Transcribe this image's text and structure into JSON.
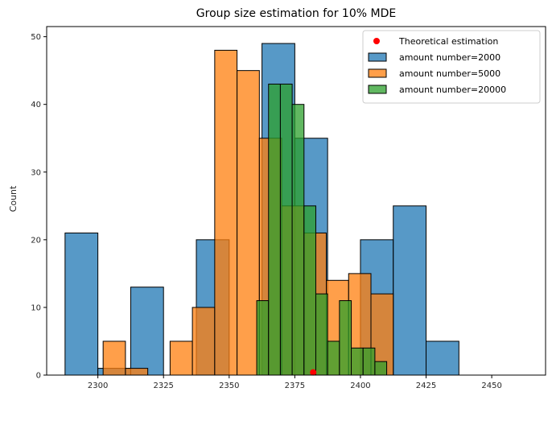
{
  "chart_data": {
    "type": "bar",
    "title": "Group size estimation for 10% MDE",
    "xlabel": "",
    "ylabel": "Count",
    "xlim": [
      2280.5,
      2470.5
    ],
    "ylim": [
      0,
      51.5
    ],
    "x_ticks": [
      2300,
      2325,
      2350,
      2375,
      2400,
      2425,
      2450
    ],
    "y_ticks": [
      0,
      10,
      20,
      30,
      40,
      50
    ],
    "grid": false,
    "legend_position": "top-right",
    "series": [
      {
        "name": "amount number=2000",
        "color": "#1f77b4",
        "bins": [
          {
            "x0": 2287.5,
            "x1": 2300.0,
            "count": 21
          },
          {
            "x0": 2300.0,
            "x1": 2312.5,
            "count": 1
          },
          {
            "x0": 2312.5,
            "x1": 2325.0,
            "count": 13
          },
          {
            "x0": 2325.0,
            "x1": 2337.5,
            "count": 0
          },
          {
            "x0": 2337.5,
            "x1": 2350.0,
            "count": 20
          },
          {
            "x0": 2350.0,
            "x1": 2362.5,
            "count": 0
          },
          {
            "x0": 2362.5,
            "x1": 2375.0,
            "count": 49
          },
          {
            "x0": 2375.0,
            "x1": 2387.5,
            "count": 35
          },
          {
            "x0": 2387.5,
            "x1": 2400.0,
            "count": 0
          },
          {
            "x0": 2400.0,
            "x1": 2412.5,
            "count": 20
          },
          {
            "x0": 2412.5,
            "x1": 2425.0,
            "count": 25
          },
          {
            "x0": 2425.0,
            "x1": 2437.5,
            "count": 5
          }
        ]
      },
      {
        "name": "amount number=5000",
        "color": "#ff7f0e",
        "bins": [
          {
            "x0": 2302.0,
            "x1": 2310.5,
            "count": 5
          },
          {
            "x0": 2310.5,
            "x1": 2319.0,
            "count": 1
          },
          {
            "x0": 2319.0,
            "x1": 2327.5,
            "count": 0
          },
          {
            "x0": 2327.5,
            "x1": 2336.0,
            "count": 5
          },
          {
            "x0": 2336.0,
            "x1": 2344.5,
            "count": 10
          },
          {
            "x0": 2344.5,
            "x1": 2353.0,
            "count": 48
          },
          {
            "x0": 2353.0,
            "x1": 2361.5,
            "count": 45
          },
          {
            "x0": 2361.5,
            "x1": 2370.0,
            "count": 35
          },
          {
            "x0": 2370.0,
            "x1": 2378.5,
            "count": 25
          },
          {
            "x0": 2378.5,
            "x1": 2387.0,
            "count": 21
          },
          {
            "x0": 2387.0,
            "x1": 2395.5,
            "count": 14
          },
          {
            "x0": 2395.5,
            "x1": 2404.0,
            "count": 15
          },
          {
            "x0": 2404.0,
            "x1": 2412.5,
            "count": 12
          }
        ]
      },
      {
        "name": "amount number=20000",
        "color": "#2ca02c",
        "bins": [
          {
            "x0": 2360.5,
            "x1": 2365.0,
            "count": 11
          },
          {
            "x0": 2365.0,
            "x1": 2369.5,
            "count": 43
          },
          {
            "x0": 2369.5,
            "x1": 2374.0,
            "count": 43
          },
          {
            "x0": 2374.0,
            "x1": 2378.5,
            "count": 40
          },
          {
            "x0": 2378.5,
            "x1": 2383.0,
            "count": 25
          },
          {
            "x0": 2383.0,
            "x1": 2387.5,
            "count": 12
          },
          {
            "x0": 2387.5,
            "x1": 2392.0,
            "count": 5
          },
          {
            "x0": 2392.0,
            "x1": 2396.5,
            "count": 11
          },
          {
            "x0": 2396.5,
            "x1": 2401.0,
            "count": 4
          },
          {
            "x0": 2401.0,
            "x1": 2405.5,
            "count": 4
          },
          {
            "x0": 2405.5,
            "x1": 2410.0,
            "count": 2
          }
        ]
      }
    ],
    "points": [
      {
        "name": "Theoretical estimation",
        "x": 2382,
        "y": 0.4,
        "color": "#ff0000"
      }
    ]
  }
}
